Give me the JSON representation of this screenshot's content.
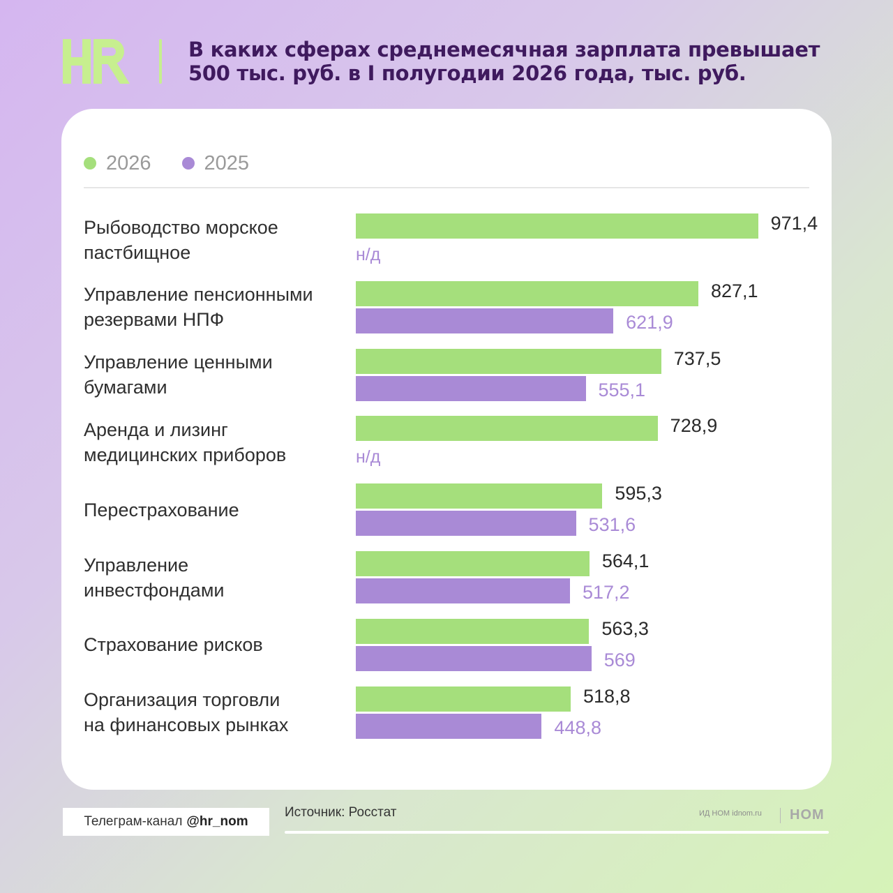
{
  "header": {
    "logo_text": "HR",
    "title": "В каких сферах среднемесячная зарплата превышает 500 тыс. руб. в I полугодии 2026 года, тыс. руб."
  },
  "colors": {
    "series_2026": "#a5df7c",
    "series_2025": "#a98ad6",
    "title": "#3f1a5e",
    "logo": "#c7ef8f"
  },
  "chart_data": {
    "type": "bar",
    "orientation": "horizontal",
    "categories": [
      [
        "Рыбоводство морское",
        "пастбищное"
      ],
      [
        "Управление пенсионными",
        "резервами НПФ"
      ],
      [
        "Управление ценными",
        "бумагами"
      ],
      [
        "Аренда и лизинг",
        "медицинских приборов"
      ],
      [
        "Перестрахование"
      ],
      [
        "Управление",
        "инвестфондами"
      ],
      [
        "Страхование рисков"
      ],
      [
        "Организация торговли",
        "на финансовых рынках"
      ]
    ],
    "series": [
      {
        "name": "2026",
        "values": [
          971.4,
          827.1,
          737.5,
          728.9,
          595.3,
          564.1,
          563.3,
          518.8
        ],
        "labels": [
          "971,4",
          "827,1",
          "737,5",
          "728,9",
          "595,3",
          "564,1",
          "563,3",
          "518,8"
        ]
      },
      {
        "name": "2025",
        "values": [
          null,
          621.9,
          555.1,
          null,
          531.6,
          517.2,
          569,
          448.8
        ],
        "labels": [
          "н/д",
          "621,9",
          "555,1",
          "н/д",
          "531,6",
          "517,2",
          "569",
          "448,8"
        ]
      }
    ],
    "legend_position": "top-left",
    "grid": false
  },
  "footer": {
    "telegram_prefix": "Телеграм-канал",
    "telegram_handle": "@hr_nom",
    "source": "Источник: Росстат",
    "publisher": "ИД НОМ idnom.ru",
    "publisher_logo": "НОМ"
  }
}
